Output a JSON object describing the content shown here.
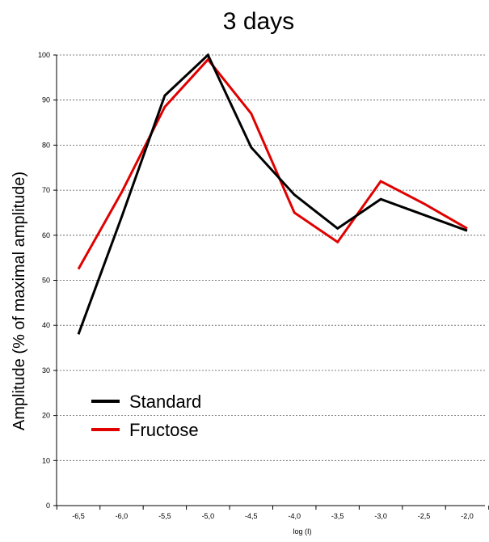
{
  "chart_data": {
    "type": "line",
    "title": "3 days",
    "xlabel": "log (I)",
    "ylabel": "Amplitude (% of maximal amplitude)",
    "x": [
      -6.5,
      -6.0,
      -5.5,
      -5.0,
      -4.5,
      -4.0,
      -3.5,
      -3.0,
      -2.5,
      -2.0
    ],
    "x_tick_labels": [
      "-6,5",
      "-6,0",
      "-5,5",
      "-5,0",
      "-4,5",
      "-4,0",
      "-3,5",
      "-3,0",
      "-2,5",
      "-2,0"
    ],
    "y_ticks": [
      0,
      10,
      20,
      30,
      40,
      50,
      60,
      70,
      80,
      90,
      100
    ],
    "ylim": [
      0,
      100
    ],
    "grid": true,
    "legend_position": "bottom-left",
    "series": [
      {
        "name": "Standard",
        "color": "#000000",
        "values": [
          38,
          64,
          91,
          100,
          79.5,
          69,
          61.5,
          68,
          64.5,
          61
        ]
      },
      {
        "name": "Fructose",
        "color": "#e00000",
        "values": [
          52.5,
          69.5,
          88.5,
          99,
          87,
          65,
          58.5,
          72,
          67,
          61.5
        ]
      }
    ]
  }
}
